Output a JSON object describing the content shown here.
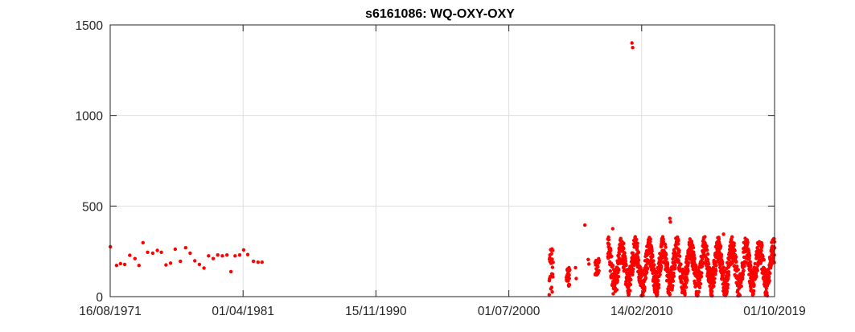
{
  "chart_data": {
    "type": "scatter",
    "title": "s6161086: WQ-OXY-OXY",
    "xlabel": "",
    "ylabel": "",
    "x_type": "date",
    "xlim": [
      "1971-08-16",
      "2019-10-01"
    ],
    "ylim": [
      0,
      1500
    ],
    "x_ticks": [
      {
        "value": "1971-08-16",
        "label": "16/08/1971"
      },
      {
        "value": "1981-04-01",
        "label": "01/04/1981"
      },
      {
        "value": "1990-11-15",
        "label": "15/11/1990"
      },
      {
        "value": "2000-07-01",
        "label": "01/07/2000"
      },
      {
        "value": "2010-02-14",
        "label": "14/02/2010"
      },
      {
        "value": "2019-10-01",
        "label": "01/10/2019"
      }
    ],
    "y_ticks": [
      {
        "value": 0,
        "label": "0"
      },
      {
        "value": 500,
        "label": "500"
      },
      {
        "value": 1000,
        "label": "1000"
      },
      {
        "value": 1500,
        "label": "1500"
      }
    ],
    "grid": true,
    "legend": "none",
    "marker_color": "#ff0000",
    "axis_color": "#262626",
    "grid_color": "#dfdfdf",
    "series": [
      {
        "points": [
          [
            "1971-08-20",
            275
          ],
          [
            "1972-02-01",
            172
          ],
          [
            "1972-05-15",
            182
          ],
          [
            "1972-09-01",
            178
          ],
          [
            "1973-01-15",
            228
          ],
          [
            "1973-06-01",
            210
          ],
          [
            "1973-09-15",
            172
          ],
          [
            "1974-01-01",
            298
          ],
          [
            "1974-05-01",
            245
          ],
          [
            "1974-09-15",
            240
          ],
          [
            "1975-01-15",
            255
          ],
          [
            "1975-05-01",
            245
          ],
          [
            "1975-09-01",
            175
          ],
          [
            "1976-01-01",
            185
          ],
          [
            "1976-05-01",
            262
          ],
          [
            "1976-09-15",
            195
          ],
          [
            "1977-02-01",
            270
          ],
          [
            "1977-06-01",
            240
          ],
          [
            "1977-10-01",
            198
          ],
          [
            "1978-02-01",
            178
          ],
          [
            "1978-06-01",
            158
          ],
          [
            "1978-10-01",
            225
          ],
          [
            "1979-02-01",
            210
          ],
          [
            "1979-06-01",
            230
          ],
          [
            "1979-10-01",
            225
          ],
          [
            "1980-02-01",
            230
          ],
          [
            "1980-05-15",
            138
          ],
          [
            "1980-09-01",
            225
          ],
          [
            "1981-01-01",
            230
          ],
          [
            "1981-04-15",
            258
          ],
          [
            "1981-08-01",
            232
          ],
          [
            "1982-01-01",
            195
          ],
          [
            "1982-05-01",
            190
          ],
          [
            "1982-08-15",
            190
          ],
          [
            "2006-01-01",
            395
          ],
          [
            "2009-06-01",
            1400
          ],
          [
            "2009-06-20",
            1375
          ],
          [
            "2012-03-01",
            432
          ],
          [
            "2012-03-15",
            412
          ],
          [
            "2008-01-10",
            375
          ],
          [
            "2016-01-20",
            345
          ],
          [
            "2005-05-01",
            160
          ],
          [
            "2005-05-20",
            100
          ],
          [
            "2006-04-01",
            205
          ],
          [
            "2006-04-20",
            180
          ]
        ]
      }
    ],
    "dense_clusters": [
      {
        "start": "2003-06-01",
        "end": "2003-09-15",
        "min": 10,
        "max": 280
      },
      {
        "start": "2004-09-01",
        "end": "2004-12-01",
        "min": 50,
        "max": 160
      },
      {
        "start": "2006-10-01",
        "end": "2007-01-15",
        "min": 120,
        "max": 210
      },
      {
        "start": "2007-09-01",
        "end": "2019-10-01",
        "min": 5,
        "max": 330
      }
    ]
  }
}
